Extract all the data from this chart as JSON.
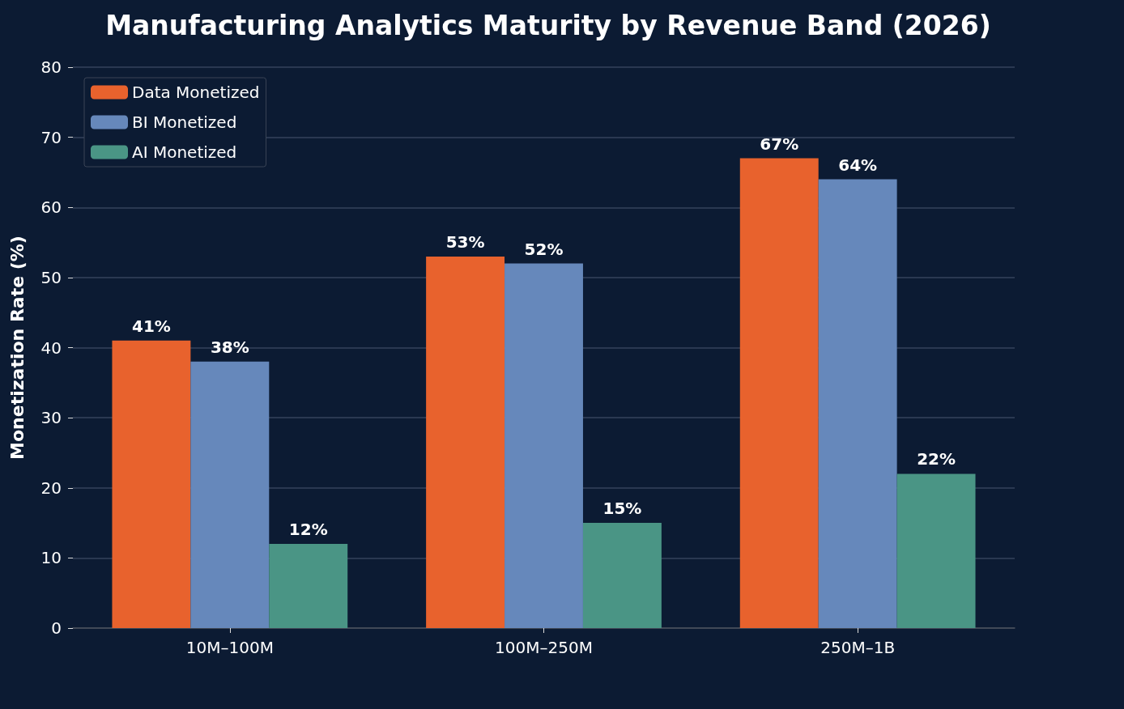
{
  "chart_data": {
    "type": "bar",
    "title": "Manufacturing Analytics Maturity by Revenue Band (2026)",
    "ylabel": "Monetization Rate (%)",
    "categories": [
      "10M–100M",
      "100M–250M",
      "250M–1B"
    ],
    "series": [
      {
        "name": "Data Monetized",
        "color": "#e8622d",
        "values": [
          41,
          53,
          67
        ],
        "value_labels": [
          "41%",
          "53%",
          "67%"
        ]
      },
      {
        "name": "BI Monetized",
        "color": "#6688bb",
        "values": [
          38,
          52,
          64
        ],
        "value_labels": [
          "38%",
          "52%",
          "64%"
        ]
      },
      {
        "name": "AI Monetized",
        "color": "#4a9585",
        "values": [
          12,
          15,
          22
        ],
        "value_labels": [
          "12%",
          "15%",
          "22%"
        ]
      }
    ],
    "ylim": [
      0,
      80
    ],
    "yticks": [
      0,
      10,
      20,
      30,
      40,
      50,
      60,
      70,
      80
    ],
    "grid": "y",
    "legend": "top left"
  }
}
